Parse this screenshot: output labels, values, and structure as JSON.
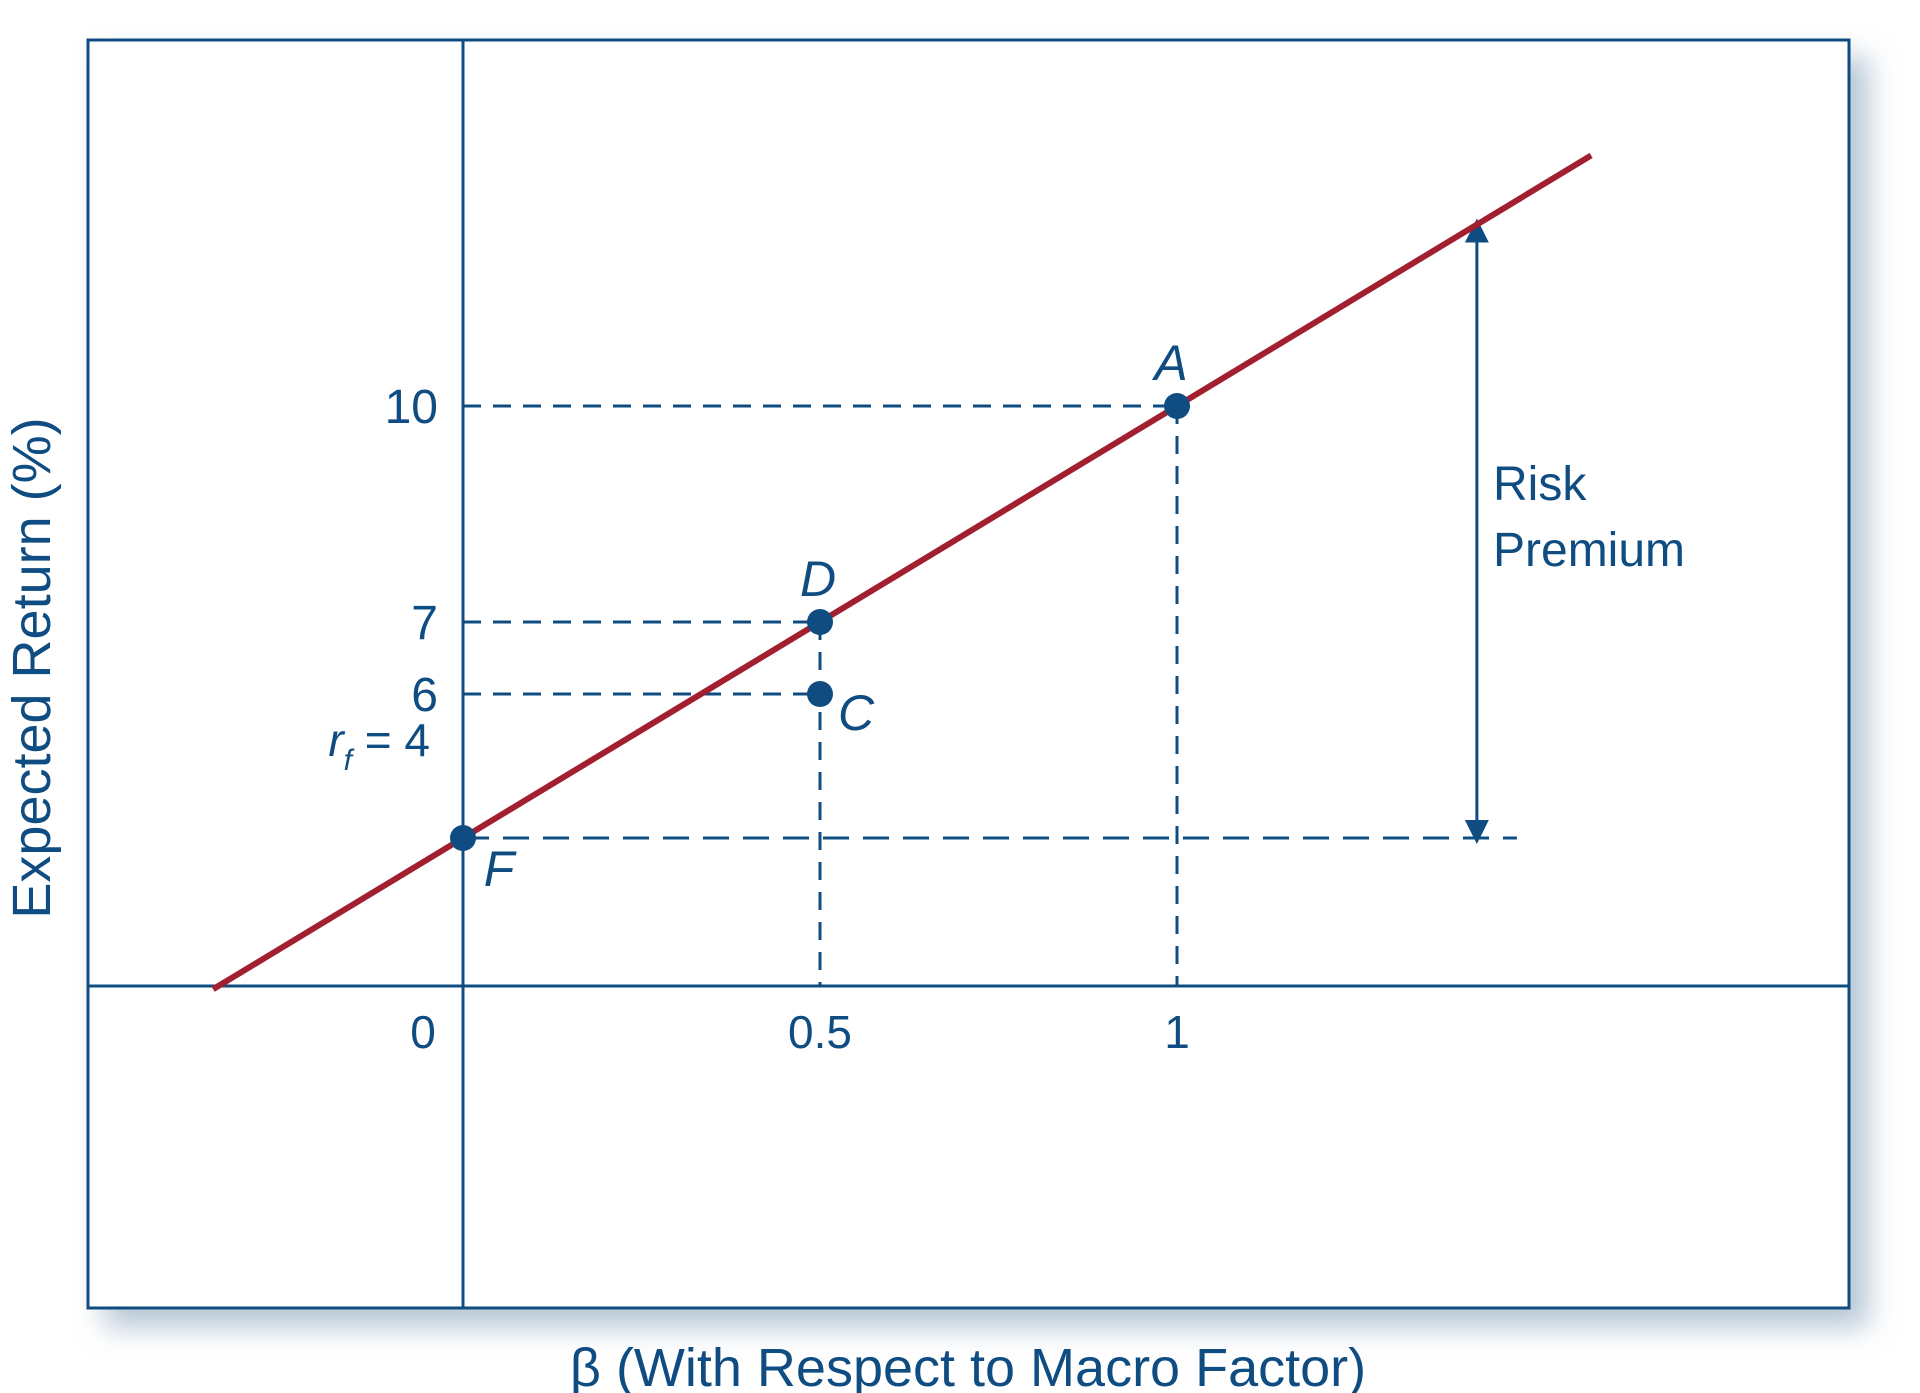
{
  "chart_data": {
    "type": "line",
    "title": "",
    "xlabel": "β (With Respect to Macro Factor)",
    "ylabel": "Expected Return (%)",
    "x_ticks": [
      "0",
      "0.5",
      "1"
    ],
    "y_ticks": [
      "10",
      "7",
      "6"
    ],
    "series": [
      {
        "kind": "line",
        "x": [
          0,
          1
        ],
        "y": [
          4,
          10
        ]
      }
    ],
    "points": [
      {
        "label": "A",
        "x": 1,
        "y": 10
      },
      {
        "label": "D",
        "x": 0.5,
        "y": 7
      },
      {
        "label": "C",
        "x": 0.5,
        "y": 6
      },
      {
        "label": "F",
        "x": 0,
        "y": 4
      }
    ],
    "rf_label": {
      "symbol": "r",
      "subscript": "f",
      "text": " = 4"
    },
    "annotation": {
      "line1": "Risk",
      "line2": "Premium"
    },
    "colors": {
      "line": "#a11f2e",
      "axis": "#0f4c81",
      "point": "#0f4c81",
      "text": "#0f4c81"
    }
  }
}
